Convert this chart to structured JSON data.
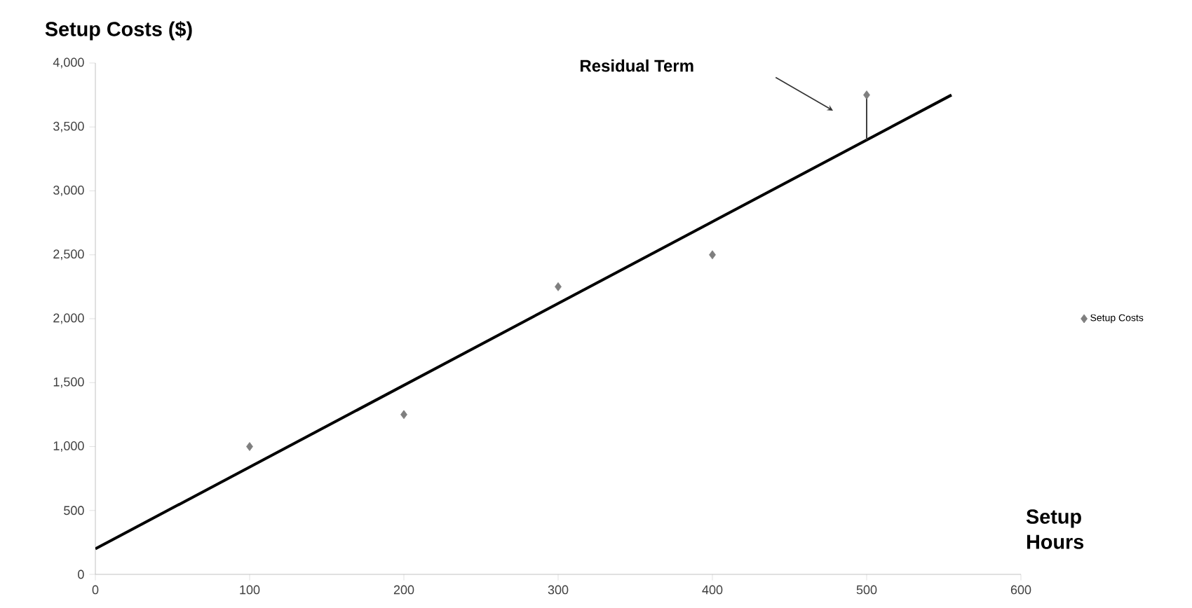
{
  "chart_data": {
    "type": "scatter",
    "xlabel": "Setup Hours",
    "ylabel": "Setup Costs ($)",
    "annotations": [
      "Residual Term"
    ],
    "series": [
      {
        "name": "Setup Costs",
        "color": "#7f7f7f",
        "marker": "diamond",
        "x": [
          100,
          200,
          300,
          400,
          500
        ],
        "values": [
          1000,
          1250,
          2250,
          2500,
          3750
        ]
      },
      {
        "type": "line",
        "color": "#000000",
        "x": [
          0,
          555
        ],
        "values": [
          200,
          3750
        ]
      },
      {
        "type": "line",
        "color": "#404040",
        "x": [
          500,
          500
        ],
        "values": [
          3400,
          3750
        ]
      }
    ],
    "xlim": [
      0,
      600
    ],
    "xticks": [
      0,
      100,
      200,
      300,
      400,
      500,
      600
    ],
    "ylim": [
      0,
      4000
    ],
    "yticks": [
      0,
      500,
      {
        "value": 1000,
        "label": "1,000"
      },
      {
        "value": 1500,
        "label": "1,500"
      },
      {
        "value": 2000,
        "label": "2,000"
      },
      {
        "value": 2500,
        "label": "2,500"
      },
      {
        "value": 3000,
        "label": "3,000"
      },
      {
        "value": 3500,
        "label": "3,500"
      },
      {
        "value": 4000,
        "label": "4,000"
      }
    ],
    "grid": false,
    "legend": "right"
  }
}
